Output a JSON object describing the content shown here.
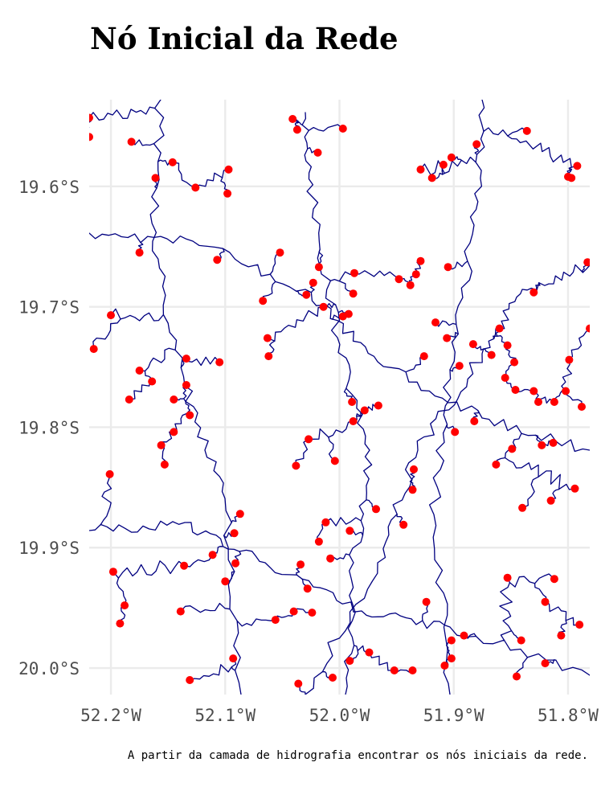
{
  "title": "Nó Inicial da Rede",
  "caption": "A partir da camada de hidrografia encontrar os nós iniciais da rede.",
  "colors": {
    "river": "#000080",
    "node": "#ff0000",
    "grid": "#ebebeb",
    "axis_text": "#4d4d4d",
    "background": "#ffffff"
  },
  "map": {
    "x_ticks": [
      {
        "value": -52.2,
        "label": "52.2°W"
      },
      {
        "value": -52.1,
        "label": "52.1°W"
      },
      {
        "value": -52.0,
        "label": "52.0°W"
      },
      {
        "value": -51.9,
        "label": "51.9°W"
      },
      {
        "value": -51.8,
        "label": "51.8°W"
      }
    ],
    "y_ticks": [
      {
        "value": -19.6,
        "label": "19.6°S"
      },
      {
        "value": -19.7,
        "label": "19.7°S"
      },
      {
        "value": -19.8,
        "label": "19.8°S"
      },
      {
        "value": -19.9,
        "label": "19.9°S"
      },
      {
        "value": -20.0,
        "label": "20.0°S"
      }
    ],
    "lon_range": [
      -52.219,
      -51.781
    ],
    "lat_range": [
      -20.022,
      -19.528
    ],
    "start_nodes": [
      [
        -52.219,
        -19.543
      ],
      [
        -52.219,
        -19.559
      ],
      [
        -52.182,
        -19.563
      ],
      [
        -52.161,
        -19.593
      ],
      [
        -52.146,
        -19.58
      ],
      [
        -52.126,
        -19.601
      ],
      [
        -52.097,
        -19.586
      ],
      [
        -52.098,
        -19.606
      ],
      [
        -52.041,
        -19.544
      ],
      [
        -52.037,
        -19.553
      ],
      [
        -52.019,
        -19.572
      ],
      [
        -51.997,
        -19.552
      ],
      [
        -51.929,
        -19.586
      ],
      [
        -51.919,
        -19.593
      ],
      [
        -51.909,
        -19.582
      ],
      [
        -51.902,
        -19.576
      ],
      [
        -51.88,
        -19.565
      ],
      [
        -51.836,
        -19.554
      ],
      [
        -51.792,
        -19.583
      ],
      [
        -51.8,
        -19.592
      ],
      [
        -51.797,
        -19.593
      ],
      [
        -52.175,
        -19.655
      ],
      [
        -52.107,
        -19.661
      ],
      [
        -52.052,
        -19.655
      ],
      [
        -52.018,
        -19.667
      ],
      [
        -52.023,
        -19.68
      ],
      [
        -52.029,
        -19.69
      ],
      [
        -52.014,
        -19.7
      ],
      [
        -51.987,
        -19.672
      ],
      [
        -51.988,
        -19.689
      ],
      [
        -51.948,
        -19.677
      ],
      [
        -51.938,
        -19.682
      ],
      [
        -51.933,
        -19.673
      ],
      [
        -51.929,
        -19.662
      ],
      [
        -51.905,
        -19.667
      ],
      [
        -51.83,
        -19.688
      ],
      [
        -51.783,
        -19.663
      ],
      [
        -52.2,
        -19.707
      ],
      [
        -52.215,
        -19.735
      ],
      [
        -52.067,
        -19.695
      ],
      [
        -52.063,
        -19.726
      ],
      [
        -52.062,
        -19.741
      ],
      [
        -52.134,
        -19.743
      ],
      [
        -52.105,
        -19.746
      ],
      [
        -52.175,
        -19.753
      ],
      [
        -52.164,
        -19.762
      ],
      [
        -52.134,
        -19.765
      ],
      [
        -52.145,
        -19.777
      ],
      [
        -52.184,
        -19.777
      ],
      [
        -52.131,
        -19.79
      ],
      [
        -51.997,
        -19.708
      ],
      [
        -51.992,
        -19.706
      ],
      [
        -51.916,
        -19.713
      ],
      [
        -51.906,
        -19.726
      ],
      [
        -51.926,
        -19.741
      ],
      [
        -51.895,
        -19.749
      ],
      [
        -51.883,
        -19.731
      ],
      [
        -51.867,
        -19.74
      ],
      [
        -51.86,
        -19.718
      ],
      [
        -51.853,
        -19.732
      ],
      [
        -51.847,
        -19.746
      ],
      [
        -51.855,
        -19.759
      ],
      [
        -51.846,
        -19.769
      ],
      [
        -51.83,
        -19.77
      ],
      [
        -51.826,
        -19.779
      ],
      [
        -51.812,
        -19.779
      ],
      [
        -51.802,
        -19.77
      ],
      [
        -51.799,
        -19.744
      ],
      [
        -51.781,
        -19.718
      ],
      [
        -51.788,
        -19.783
      ],
      [
        -51.989,
        -19.779
      ],
      [
        -51.988,
        -19.795
      ],
      [
        -51.978,
        -19.786
      ],
      [
        -51.966,
        -19.782
      ],
      [
        -52.145,
        -19.804
      ],
      [
        -52.156,
        -19.815
      ],
      [
        -52.153,
        -19.831
      ],
      [
        -52.201,
        -19.839
      ],
      [
        -52.027,
        -19.81
      ],
      [
        -52.038,
        -19.832
      ],
      [
        -52.004,
        -19.828
      ],
      [
        -51.899,
        -19.804
      ],
      [
        -51.882,
        -19.795
      ],
      [
        -51.849,
        -19.818
      ],
      [
        -51.823,
        -19.815
      ],
      [
        -51.813,
        -19.813
      ],
      [
        -51.863,
        -19.831
      ],
      [
        -51.935,
        -19.835
      ],
      [
        -51.936,
        -19.852
      ],
      [
        -51.794,
        -19.851
      ],
      [
        -51.84,
        -19.867
      ],
      [
        -51.815,
        -19.861
      ],
      [
        -52.087,
        -19.872
      ],
      [
        -52.092,
        -19.888
      ],
      [
        -52.012,
        -19.879
      ],
      [
        -51.968,
        -19.868
      ],
      [
        -51.991,
        -19.886
      ],
      [
        -51.944,
        -19.881
      ],
      [
        -52.018,
        -19.895
      ],
      [
        -52.034,
        -19.914
      ],
      [
        -52.111,
        -19.906
      ],
      [
        -52.091,
        -19.913
      ],
      [
        -52.1,
        -19.928
      ],
      [
        -52.136,
        -19.915
      ],
      [
        -52.198,
        -19.92
      ],
      [
        -52.008,
        -19.909
      ],
      [
        -52.028,
        -19.934
      ],
      [
        -51.853,
        -19.925
      ],
      [
        -51.812,
        -19.926
      ],
      [
        -51.82,
        -19.945
      ],
      [
        -51.924,
        -19.945
      ],
      [
        -52.188,
        -19.948
      ],
      [
        -52.139,
        -19.953
      ],
      [
        -52.192,
        -19.963
      ],
      [
        -52.056,
        -19.96
      ],
      [
        -52.04,
        -19.953
      ],
      [
        -52.024,
        -19.954
      ],
      [
        -51.79,
        -19.964
      ],
      [
        -51.806,
        -19.973
      ],
      [
        -51.841,
        -19.977
      ],
      [
        -51.891,
        -19.973
      ],
      [
        -51.902,
        -19.977
      ],
      [
        -51.974,
        -19.987
      ],
      [
        -51.991,
        -19.994
      ],
      [
        -52.093,
        -19.992
      ],
      [
        -51.902,
        -19.992
      ],
      [
        -51.908,
        -19.998
      ],
      [
        -51.952,
        -20.002
      ],
      [
        -51.936,
        -20.002
      ],
      [
        -51.82,
        -19.996
      ],
      [
        -51.845,
        -20.007
      ],
      [
        -52.006,
        -20.008
      ],
      [
        -52.131,
        -20.01
      ],
      [
        -52.036,
        -20.013
      ]
    ]
  }
}
